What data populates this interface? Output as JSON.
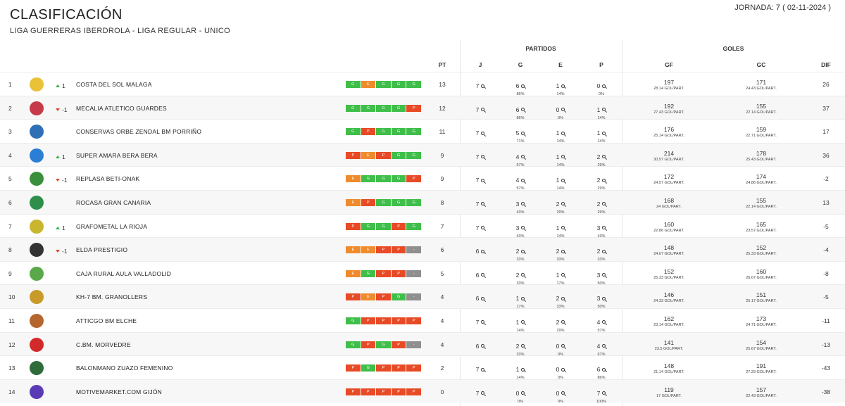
{
  "header": {
    "title": "CLASIFICACIÓN",
    "subtitle": "LIGA GUERRERAS IBERDROLA - LIGA REGULAR - UNICO",
    "jornada": "JORNADA: 7 ( 02-11-2024 )"
  },
  "columns": {
    "pt": "PT",
    "partidos": "PARTIDOS",
    "j": "J",
    "g": "G",
    "e": "E",
    "p": "P",
    "goles": "GOLES",
    "gf": "GF",
    "gc": "GC",
    "dif": "DIF"
  },
  "colors": {
    "win": "#3fbf4a",
    "draw": "#ef8b2c",
    "loss": "#e84a26",
    "pending": "#8f8f8f",
    "trend_up": "#35b649",
    "trend_down": "#e0452e"
  },
  "rows": [
    {
      "pos": "1",
      "logo_color": "#e9c23a",
      "trend_dir": "up",
      "trend": "1",
      "team": "COSTA DEL SOL MALAGA",
      "form": [
        "G",
        "E",
        "G",
        "G",
        "G"
      ],
      "pt": "13",
      "j": "7",
      "g": "6",
      "g_pct": "86%",
      "e": "1",
      "e_pct": "14%",
      "p": "0",
      "p_pct": "0%",
      "gf": "197",
      "gf_avg": "28.14 GOL/PART.",
      "gc": "171",
      "gc_avg": "24.43 GOL/PART.",
      "dif": "26"
    },
    {
      "pos": "2",
      "logo_color": "#c73a4a",
      "trend_dir": "down",
      "trend": "-1",
      "team": "MECALIA ATLETICO GUARDES",
      "form": [
        "G",
        "G",
        "G",
        "G",
        "P"
      ],
      "pt": "12",
      "j": "7",
      "g": "6",
      "g_pct": "86%",
      "e": "0",
      "e_pct": "0%",
      "p": "1",
      "p_pct": "14%",
      "gf": "192",
      "gf_avg": "27.43 GOL/PART.",
      "gc": "155",
      "gc_avg": "22.14 GOL/PART.",
      "dif": "37"
    },
    {
      "pos": "3",
      "logo_color": "#2e6fb5",
      "trend_dir": "none",
      "trend": "",
      "team": "CONSERVAS ORBE ZENDAL BM PORRIÑO",
      "form": [
        "G",
        "P",
        "G",
        "G",
        "G"
      ],
      "pt": "11",
      "j": "7",
      "g": "5",
      "g_pct": "71%",
      "e": "1",
      "e_pct": "14%",
      "p": "1",
      "p_pct": "14%",
      "gf": "176",
      "gf_avg": "25.14 GOL/PART.",
      "gc": "159",
      "gc_avg": "22.71 GOL/PART.",
      "dif": "17"
    },
    {
      "pos": "4",
      "logo_color": "#2a7fd4",
      "trend_dir": "up",
      "trend": "1",
      "team": "SUPER AMARA BERA BERA",
      "form": [
        "P",
        "E",
        "P",
        "G",
        "G"
      ],
      "pt": "9",
      "j": "7",
      "g": "4",
      "g_pct": "57%",
      "e": "1",
      "e_pct": "14%",
      "p": "2",
      "p_pct": "29%",
      "gf": "214",
      "gf_avg": "30.57 GOL/PART.",
      "gc": "178",
      "gc_avg": "25.43 GOL/PART.",
      "dif": "36"
    },
    {
      "pos": "5",
      "logo_color": "#3a8f3a",
      "trend_dir": "down",
      "trend": "-1",
      "team": "REPLASA BETI-ONAK",
      "form": [
        "E",
        "G",
        "G",
        "G",
        "P"
      ],
      "pt": "9",
      "j": "7",
      "g": "4",
      "g_pct": "57%",
      "e": "1",
      "e_pct": "14%",
      "p": "2",
      "p_pct": "29%",
      "gf": "172",
      "gf_avg": "24.57 GOL/PART.",
      "gc": "174",
      "gc_avg": "24.86 GOL/PART.",
      "dif": "-2"
    },
    {
      "pos": "6",
      "logo_color": "#2f8f4a",
      "trend_dir": "none",
      "trend": "",
      "team": "ROCASA GRAN CANARIA",
      "form": [
        "E",
        "P",
        "G",
        "G",
        "G"
      ],
      "pt": "8",
      "j": "7",
      "g": "3",
      "g_pct": "43%",
      "e": "2",
      "e_pct": "29%",
      "p": "2",
      "p_pct": "29%",
      "gf": "168",
      "gf_avg": "24 GOL/PART.",
      "gc": "155",
      "gc_avg": "22.14 GOL/PART.",
      "dif": "13"
    },
    {
      "pos": "7",
      "logo_color": "#c9b52e",
      "trend_dir": "up",
      "trend": "1",
      "team": "GRAFOMETAL LA RIOJA",
      "form": [
        "P",
        "G",
        "G",
        "P",
        "G"
      ],
      "pt": "7",
      "j": "7",
      "g": "3",
      "g_pct": "43%",
      "e": "1",
      "e_pct": "14%",
      "p": "3",
      "p_pct": "43%",
      "gf": "160",
      "gf_avg": "22.86 GOL/PART.",
      "gc": "165",
      "gc_avg": "23.57 GOL/PART.",
      "dif": "-5"
    },
    {
      "pos": "8",
      "logo_color": "#333333",
      "trend_dir": "down",
      "trend": "-1",
      "team": "ELDA PRESTIGIO",
      "form": [
        "E",
        "E",
        "P",
        "P",
        "-"
      ],
      "pt": "6",
      "j": "6",
      "g": "2",
      "g_pct": "33%",
      "e": "2",
      "e_pct": "33%",
      "p": "2",
      "p_pct": "33%",
      "gf": "148",
      "gf_avg": "24.67 GOL/PART.",
      "gc": "152",
      "gc_avg": "25.33 GOL/PART.",
      "dif": "-4"
    },
    {
      "pos": "9",
      "logo_color": "#5aa84a",
      "trend_dir": "none",
      "trend": "",
      "team": "CAJA RURAL AULA VALLADOLID",
      "form": [
        "E",
        "G",
        "P",
        "P",
        "-"
      ],
      "pt": "5",
      "j": "6",
      "g": "2",
      "g_pct": "33%",
      "e": "1",
      "e_pct": "17%",
      "p": "3",
      "p_pct": "50%",
      "gf": "152",
      "gf_avg": "25.33 GOL/PART.",
      "gc": "160",
      "gc_avg": "26.67 GOL/PART.",
      "dif": "-8"
    },
    {
      "pos": "10",
      "logo_color": "#c89a2a",
      "trend_dir": "none",
      "trend": "",
      "team": "KH-7 BM. GRANOLLERS",
      "form": [
        "P",
        "E",
        "P",
        "G",
        "-"
      ],
      "pt": "4",
      "j": "6",
      "g": "1",
      "g_pct": "17%",
      "e": "2",
      "e_pct": "33%",
      "p": "3",
      "p_pct": "50%",
      "gf": "146",
      "gf_avg": "24.33 GOL/PART.",
      "gc": "151",
      "gc_avg": "25.17 GOL/PART.",
      "dif": "-5"
    },
    {
      "pos": "11",
      "logo_color": "#b5652e",
      "trend_dir": "none",
      "trend": "",
      "team": "ATTICGO BM ELCHE",
      "form": [
        "G",
        "P",
        "P",
        "P",
        "P"
      ],
      "pt": "4",
      "j": "7",
      "g": "1",
      "g_pct": "14%",
      "e": "2",
      "e_pct": "29%",
      "p": "4",
      "p_pct": "57%",
      "gf": "162",
      "gf_avg": "23.14 GOL/PART.",
      "gc": "173",
      "gc_avg": "24.71 GOL/PART.",
      "dif": "-11"
    },
    {
      "pos": "12",
      "logo_color": "#d22a2a",
      "trend_dir": "none",
      "trend": "",
      "team": "C.BM. MORVEDRE",
      "form": [
        "G",
        "P",
        "G",
        "P",
        "-"
      ],
      "pt": "4",
      "j": "6",
      "g": "2",
      "g_pct": "33%",
      "e": "0",
      "e_pct": "0%",
      "p": "4",
      "p_pct": "67%",
      "gf": "141",
      "gf_avg": "23.5 GOL/PART.",
      "gc": "154",
      "gc_avg": "25.67 GOL/PART.",
      "dif": "-13"
    },
    {
      "pos": "13",
      "logo_color": "#2e6a3a",
      "trend_dir": "none",
      "trend": "",
      "team": "BALONMANO ZUAZO FEMENINO",
      "form": [
        "P",
        "G",
        "P",
        "P",
        "P"
      ],
      "pt": "2",
      "j": "7",
      "g": "1",
      "g_pct": "14%",
      "e": "0",
      "e_pct": "0%",
      "p": "6",
      "p_pct": "86%",
      "gf": "148",
      "gf_avg": "21.14 GOL/PART.",
      "gc": "191",
      "gc_avg": "27.29 GOL/PART.",
      "dif": "-43"
    },
    {
      "pos": "14",
      "logo_color": "#5a3ab5",
      "trend_dir": "none",
      "trend": "",
      "team": "MOTIVEMARKET.COM GIJÓN",
      "form": [
        "P",
        "P",
        "P",
        "P",
        "P"
      ],
      "pt": "0",
      "j": "7",
      "g": "0",
      "g_pct": "0%",
      "e": "0",
      "e_pct": "0%",
      "p": "7",
      "p_pct": "100%",
      "gf": "119",
      "gf_avg": "17 GOL/PART.",
      "gc": "157",
      "gc_avg": "22.43 GOL/PART.",
      "dif": "-38"
    }
  ]
}
